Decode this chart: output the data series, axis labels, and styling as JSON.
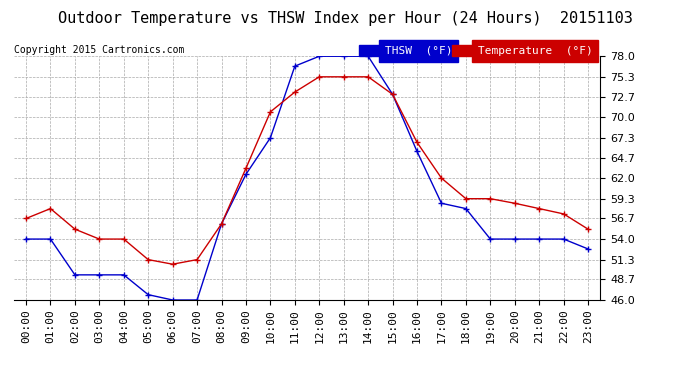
{
  "title": "Outdoor Temperature vs THSW Index per Hour (24 Hours)  20151103",
  "copyright": "Copyright 2015 Cartronics.com",
  "background_color": "#ffffff",
  "plot_bg_color": "#ffffff",
  "grid_color": "#aaaaaa",
  "hours": [
    "00:00",
    "01:00",
    "02:00",
    "03:00",
    "04:00",
    "05:00",
    "06:00",
    "07:00",
    "08:00",
    "09:00",
    "10:00",
    "11:00",
    "12:00",
    "13:00",
    "14:00",
    "15:00",
    "16:00",
    "17:00",
    "18:00",
    "19:00",
    "20:00",
    "21:00",
    "22:00",
    "23:00"
  ],
  "thsw": [
    54.0,
    54.0,
    49.3,
    49.3,
    49.3,
    46.7,
    46.0,
    46.0,
    56.0,
    62.5,
    67.3,
    76.7,
    78.0,
    78.0,
    78.0,
    73.0,
    65.5,
    58.7,
    58.0,
    54.0,
    54.0,
    54.0,
    54.0,
    52.7
  ],
  "temperature": [
    56.7,
    58.0,
    55.3,
    54.0,
    54.0,
    51.3,
    50.7,
    51.3,
    56.0,
    63.3,
    70.7,
    73.3,
    75.3,
    75.3,
    75.3,
    73.0,
    66.7,
    62.0,
    59.3,
    59.3,
    58.7,
    58.0,
    57.3,
    55.3
  ],
  "thsw_color": "#0000cc",
  "temp_color": "#cc0000",
  "ylim": [
    46.0,
    78.0
  ],
  "yticks": [
    46.0,
    48.7,
    51.3,
    54.0,
    56.7,
    59.3,
    62.0,
    64.7,
    67.3,
    70.0,
    72.7,
    75.3,
    78.0
  ],
  "title_fontsize": 11,
  "axis_fontsize": 8,
  "copyright_fontsize": 7,
  "legend_thsw_label": "THSW  (°F)",
  "legend_temp_label": "Temperature  (°F)",
  "legend_thsw_color": "#0000cc",
  "legend_temp_color": "#cc0000",
  "marker": "+"
}
